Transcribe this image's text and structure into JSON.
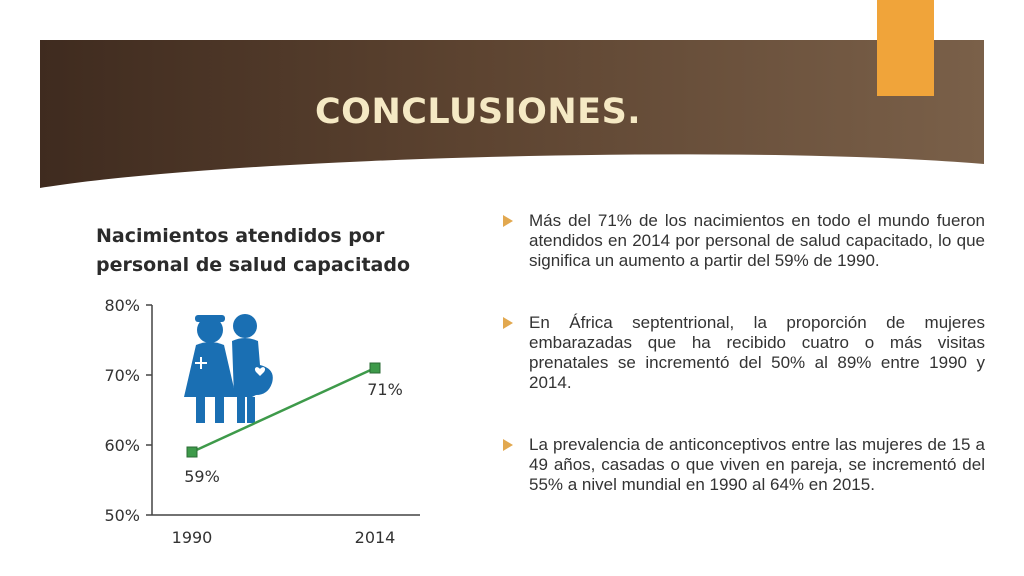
{
  "slide": {
    "title": "CONCLUSIONES.",
    "colors": {
      "banner": "#5c4330",
      "accent": "#f0a43a",
      "title_text": "#f5e9c4",
      "bullet": "#e2a84f"
    }
  },
  "chart_title": {
    "line1": "Nacimientos atendidos por",
    "line2": "personal de salud capacitado"
  },
  "illustration": {
    "icon": "women-health-worker-icon"
  },
  "chart_data": {
    "type": "line",
    "title": "Nacimientos atendidos por personal de salud capacitado",
    "categories": [
      "1990",
      "2014"
    ],
    "series": [
      {
        "values": [
          59,
          71
        ],
        "color": "#3e9a4a"
      }
    ],
    "data_labels": [
      "59%",
      "71%"
    ],
    "y_ticks": [
      "80%",
      "70%",
      "60%",
      "50%"
    ],
    "y_tick_values": [
      80,
      70,
      60,
      50
    ],
    "ylim": [
      50,
      80
    ],
    "grid": false
  },
  "bullets": [
    "Más del 71% de los nacimientos en todo el mundo fueron atendidos en 2014 por personal de salud capacitado, lo que significa un aumento a partir del 59% de 1990.",
    "En África septentrional, la proporción de mujeres embarazadas que ha recibido cuatro o más visitas prenatales se incrementó del 50% al 89% entre 1990 y 2014.",
    "La prevalencia de anticonceptivos entre las mujeres de 15 a 49 años, casadas o que viven en pareja, se incrementó del 55% a nivel mundial en 1990 al 64% en 2015."
  ]
}
